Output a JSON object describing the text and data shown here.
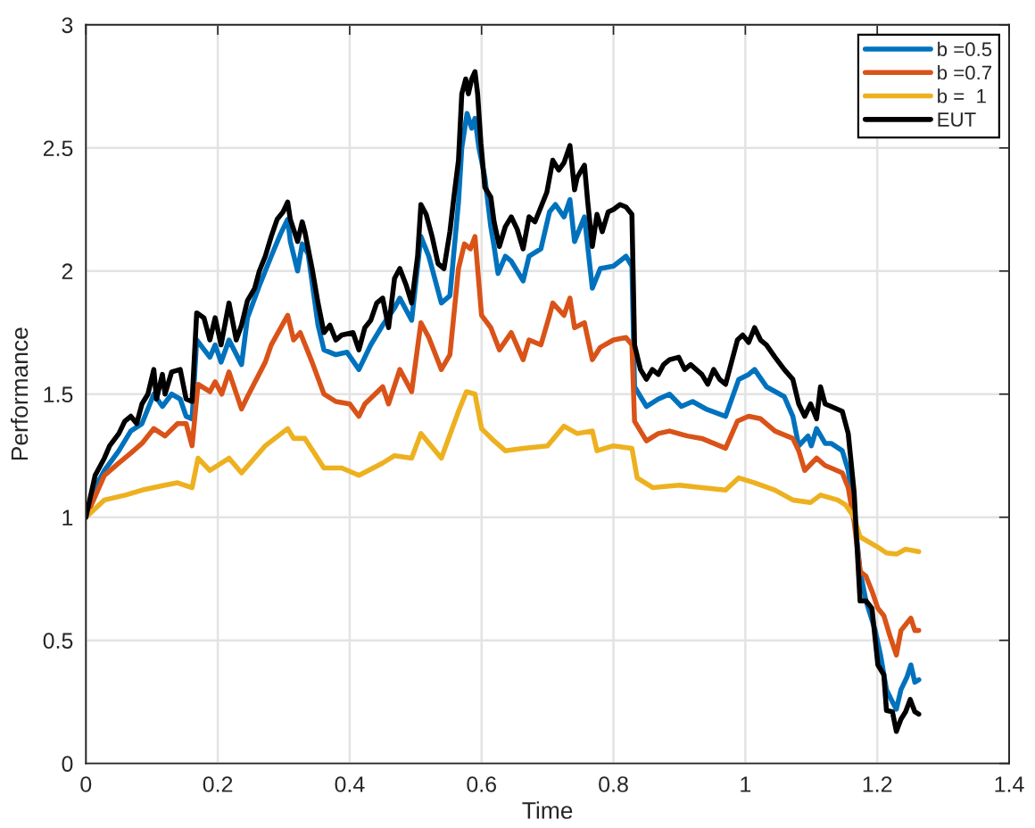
{
  "chart_data": {
    "type": "line",
    "xlabel": "Time",
    "ylabel": "Performance",
    "xlim": [
      0,
      1.4
    ],
    "xticks": [
      0,
      0.2,
      0.4,
      0.6,
      0.8,
      1,
      1.2,
      1.4
    ],
    "ylim": [
      0,
      3
    ],
    "yticks": [
      0,
      0.5,
      1,
      1.5,
      2,
      2.5,
      3
    ],
    "grid": true,
    "legend": "top right",
    "line_style": "solid",
    "series": [
      {
        "name": "b =0.5",
        "color": "#0072bd",
        "x": [
          0,
          0.014,
          0.028,
          0.05,
          0.068,
          0.085,
          0.103,
          0.116,
          0.13,
          0.143,
          0.152,
          0.161,
          0.168,
          0.188,
          0.196,
          0.205,
          0.217,
          0.236,
          0.245,
          0.263,
          0.281,
          0.295,
          0.306,
          0.31,
          0.321,
          0.328,
          0.337,
          0.352,
          0.361,
          0.379,
          0.396,
          0.414,
          0.432,
          0.45,
          0.468,
          0.476,
          0.494,
          0.508,
          0.52,
          0.539,
          0.552,
          0.565,
          0.57,
          0.578,
          0.585,
          0.59,
          0.596,
          0.605,
          0.614,
          0.619,
          0.625,
          0.636,
          0.645,
          0.663,
          0.672,
          0.69,
          0.703,
          0.712,
          0.725,
          0.734,
          0.741,
          0.756,
          0.768,
          0.78,
          0.8,
          0.819,
          0.828,
          0.832,
          0.85,
          0.868,
          0.885,
          0.903,
          0.92,
          0.94,
          0.97,
          0.99,
          1.005,
          1.014,
          1.032,
          1.059,
          1.072,
          1.081,
          1.095,
          1.1,
          1.108,
          1.121,
          1.13,
          1.147,
          1.156,
          1.165,
          1.174,
          1.183,
          1.197,
          1.205,
          1.214,
          1.223,
          1.229,
          1.236,
          1.245,
          1.251,
          1.257,
          1.263
        ],
        "values": [
          1.0,
          1.12,
          1.19,
          1.27,
          1.35,
          1.38,
          1.5,
          1.45,
          1.5,
          1.48,
          1.41,
          1.4,
          1.72,
          1.65,
          1.7,
          1.63,
          1.72,
          1.62,
          1.81,
          1.94,
          2.06,
          2.15,
          2.21,
          2.12,
          2.0,
          2.11,
          2.07,
          1.78,
          1.68,
          1.66,
          1.67,
          1.6,
          1.7,
          1.78,
          1.85,
          1.89,
          1.8,
          2.14,
          2.06,
          1.87,
          1.9,
          2.28,
          2.5,
          2.64,
          2.58,
          2.62,
          2.5,
          2.38,
          2.18,
          2.1,
          1.99,
          2.06,
          2.04,
          1.96,
          2.06,
          2.09,
          2.24,
          2.27,
          2.22,
          2.29,
          2.12,
          2.22,
          1.93,
          2.01,
          2.02,
          2.06,
          2.02,
          1.53,
          1.45,
          1.48,
          1.5,
          1.45,
          1.47,
          1.44,
          1.41,
          1.56,
          1.58,
          1.6,
          1.53,
          1.49,
          1.41,
          1.29,
          1.33,
          1.29,
          1.36,
          1.3,
          1.3,
          1.27,
          1.19,
          1.02,
          0.78,
          0.66,
          0.54,
          0.44,
          0.3,
          0.25,
          0.22,
          0.3,
          0.35,
          0.4,
          0.33,
          0.34
        ]
      },
      {
        "name": "b =0.7",
        "color": "#d95319",
        "x": [
          0,
          0.028,
          0.05,
          0.068,
          0.085,
          0.103,
          0.12,
          0.139,
          0.152,
          0.161,
          0.17,
          0.188,
          0.196,
          0.206,
          0.217,
          0.236,
          0.245,
          0.272,
          0.281,
          0.306,
          0.315,
          0.325,
          0.343,
          0.361,
          0.379,
          0.4,
          0.414,
          0.423,
          0.45,
          0.459,
          0.476,
          0.494,
          0.508,
          0.52,
          0.539,
          0.552,
          0.565,
          0.574,
          0.583,
          0.59,
          0.6,
          0.614,
          0.627,
          0.645,
          0.663,
          0.672,
          0.69,
          0.703,
          0.708,
          0.725,
          0.734,
          0.741,
          0.756,
          0.768,
          0.78,
          0.8,
          0.819,
          0.828,
          0.832,
          0.85,
          0.868,
          0.885,
          0.912,
          0.934,
          0.97,
          0.988,
          1.005,
          1.023,
          1.045,
          1.072,
          1.081,
          1.09,
          1.108,
          1.121,
          1.13,
          1.147,
          1.156,
          1.165,
          1.174,
          1.183,
          1.192,
          1.201,
          1.21,
          1.219,
          1.229,
          1.236,
          1.245,
          1.251,
          1.257,
          1.263
        ],
        "values": [
          1.0,
          1.17,
          1.22,
          1.26,
          1.3,
          1.36,
          1.33,
          1.38,
          1.38,
          1.29,
          1.54,
          1.51,
          1.55,
          1.5,
          1.59,
          1.44,
          1.49,
          1.63,
          1.7,
          1.82,
          1.72,
          1.75,
          1.63,
          1.5,
          1.47,
          1.46,
          1.41,
          1.46,
          1.53,
          1.46,
          1.6,
          1.51,
          1.79,
          1.73,
          1.6,
          1.66,
          2.01,
          2.11,
          2.09,
          2.14,
          1.82,
          1.77,
          1.68,
          1.75,
          1.64,
          1.72,
          1.7,
          1.82,
          1.87,
          1.82,
          1.89,
          1.77,
          1.79,
          1.64,
          1.69,
          1.72,
          1.73,
          1.7,
          1.39,
          1.31,
          1.34,
          1.35,
          1.33,
          1.32,
          1.28,
          1.39,
          1.41,
          1.4,
          1.35,
          1.32,
          1.27,
          1.19,
          1.24,
          1.21,
          1.2,
          1.18,
          1.12,
          0.98,
          0.78,
          0.76,
          0.7,
          0.63,
          0.6,
          0.52,
          0.44,
          0.54,
          0.57,
          0.59,
          0.54,
          0.54
        ]
      },
      {
        "name": "b =  1",
        "color": "#edb120",
        "x": [
          0,
          0.028,
          0.06,
          0.085,
          0.12,
          0.139,
          0.161,
          0.17,
          0.188,
          0.217,
          0.236,
          0.272,
          0.306,
          0.315,
          0.332,
          0.361,
          0.388,
          0.414,
          0.45,
          0.468,
          0.494,
          0.508,
          0.539,
          0.565,
          0.577,
          0.59,
          0.6,
          0.619,
          0.636,
          0.663,
          0.7,
          0.725,
          0.745,
          0.768,
          0.775,
          0.8,
          0.828,
          0.836,
          0.86,
          0.9,
          0.934,
          0.97,
          0.99,
          1.014,
          1.045,
          1.072,
          1.099,
          1.114,
          1.14,
          1.152,
          1.165,
          1.174,
          1.2,
          1.214,
          1.229,
          1.243,
          1.263
        ],
        "values": [
          1.0,
          1.07,
          1.09,
          1.11,
          1.13,
          1.14,
          1.12,
          1.24,
          1.19,
          1.24,
          1.18,
          1.29,
          1.36,
          1.32,
          1.32,
          1.2,
          1.2,
          1.17,
          1.22,
          1.25,
          1.24,
          1.34,
          1.24,
          1.43,
          1.51,
          1.5,
          1.36,
          1.31,
          1.27,
          1.28,
          1.29,
          1.37,
          1.34,
          1.35,
          1.27,
          1.29,
          1.28,
          1.16,
          1.12,
          1.13,
          1.12,
          1.11,
          1.16,
          1.14,
          1.11,
          1.07,
          1.06,
          1.09,
          1.07,
          1.05,
          1.0,
          0.92,
          0.88,
          0.855,
          0.85,
          0.87,
          0.86
        ]
      },
      {
        "name": "EUT",
        "color": "#000000",
        "x": [
          0,
          0.014,
          0.028,
          0.036,
          0.05,
          0.059,
          0.068,
          0.077,
          0.085,
          0.094,
          0.103,
          0.107,
          0.116,
          0.12,
          0.13,
          0.143,
          0.152,
          0.161,
          0.168,
          0.179,
          0.188,
          0.196,
          0.205,
          0.217,
          0.228,
          0.236,
          0.245,
          0.256,
          0.263,
          0.272,
          0.281,
          0.29,
          0.299,
          0.306,
          0.31,
          0.321,
          0.328,
          0.332,
          0.343,
          0.352,
          0.361,
          0.37,
          0.379,
          0.388,
          0.405,
          0.414,
          0.423,
          0.432,
          0.441,
          0.45,
          0.459,
          0.468,
          0.476,
          0.486,
          0.494,
          0.503,
          0.508,
          0.516,
          0.525,
          0.534,
          0.543,
          0.552,
          0.558,
          0.565,
          0.57,
          0.576,
          0.58,
          0.585,
          0.59,
          0.594,
          0.599,
          0.605,
          0.614,
          0.619,
          0.627,
          0.636,
          0.645,
          0.654,
          0.663,
          0.672,
          0.681,
          0.699,
          0.708,
          0.717,
          0.725,
          0.734,
          0.741,
          0.745,
          0.756,
          0.761,
          0.768,
          0.775,
          0.783,
          0.792,
          0.8,
          0.81,
          0.819,
          0.828,
          0.832,
          0.841,
          0.85,
          0.859,
          0.868,
          0.876,
          0.885,
          0.899,
          0.908,
          0.917,
          0.934,
          0.943,
          0.952,
          0.961,
          0.97,
          0.979,
          0.988,
          0.996,
          1.005,
          1.014,
          1.023,
          1.032,
          1.045,
          1.059,
          1.072,
          1.081,
          1.09,
          1.099,
          1.108,
          1.114,
          1.121,
          1.13,
          1.147,
          1.156,
          1.165,
          1.169,
          1.174,
          1.183,
          1.192,
          1.201,
          1.21,
          1.214,
          1.223,
          1.229,
          1.236,
          1.243,
          1.25,
          1.257,
          1.263
        ],
        "values": [
          1.0,
          1.17,
          1.24,
          1.29,
          1.34,
          1.39,
          1.41,
          1.38,
          1.46,
          1.5,
          1.6,
          1.48,
          1.58,
          1.5,
          1.59,
          1.6,
          1.48,
          1.47,
          1.83,
          1.81,
          1.72,
          1.81,
          1.7,
          1.87,
          1.72,
          1.78,
          1.88,
          1.93,
          2.0,
          2.06,
          2.14,
          2.21,
          2.24,
          2.28,
          2.21,
          2.12,
          2.2,
          2.16,
          2.01,
          1.87,
          1.75,
          1.78,
          1.72,
          1.74,
          1.75,
          1.68,
          1.77,
          1.8,
          1.87,
          1.89,
          1.77,
          1.97,
          2.01,
          1.94,
          1.87,
          2.06,
          2.27,
          2.23,
          2.14,
          2.03,
          2.01,
          2.16,
          2.3,
          2.45,
          2.72,
          2.78,
          2.72,
          2.78,
          2.81,
          2.72,
          2.52,
          2.34,
          2.3,
          2.2,
          2.1,
          2.18,
          2.22,
          2.17,
          2.09,
          2.22,
          2.2,
          2.32,
          2.45,
          2.41,
          2.44,
          2.51,
          2.33,
          2.38,
          2.43,
          2.28,
          2.1,
          2.23,
          2.16,
          2.24,
          2.25,
          2.27,
          2.26,
          2.23,
          1.7,
          1.6,
          1.56,
          1.6,
          1.58,
          1.62,
          1.64,
          1.65,
          1.6,
          1.62,
          1.58,
          1.54,
          1.6,
          1.56,
          1.54,
          1.63,
          1.72,
          1.74,
          1.71,
          1.77,
          1.72,
          1.7,
          1.65,
          1.6,
          1.56,
          1.46,
          1.41,
          1.46,
          1.4,
          1.53,
          1.46,
          1.45,
          1.43,
          1.34,
          1.1,
          0.9,
          0.66,
          0.66,
          0.63,
          0.4,
          0.36,
          0.215,
          0.21,
          0.13,
          0.18,
          0.21,
          0.26,
          0.21,
          0.2
        ]
      }
    ]
  }
}
